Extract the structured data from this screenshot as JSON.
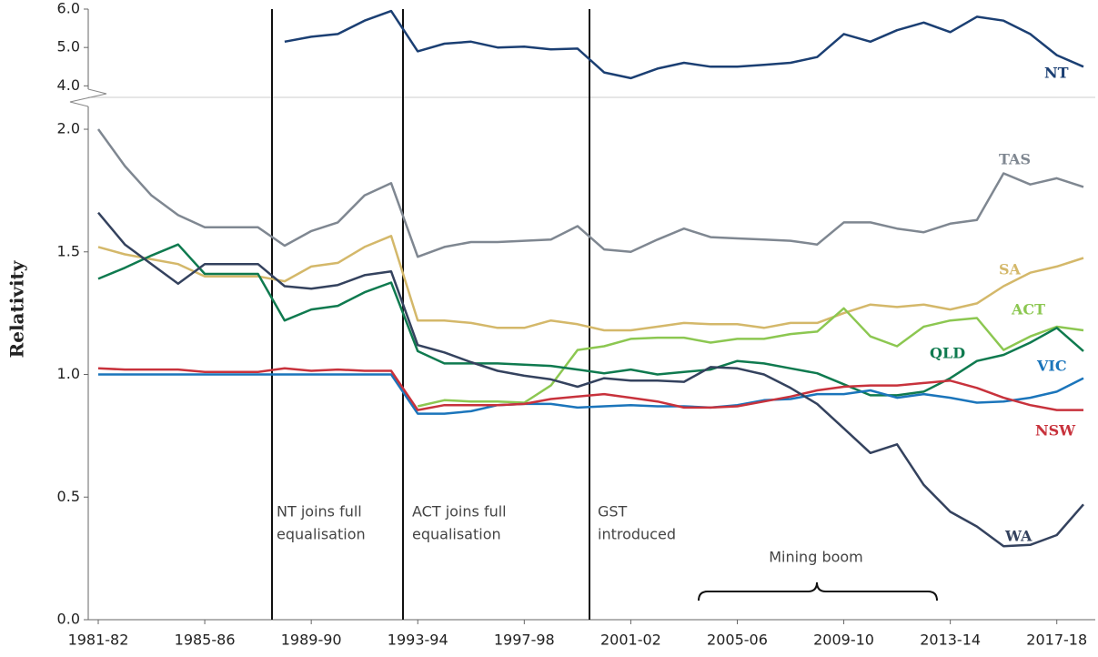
{
  "chart_data": {
    "type": "line",
    "y_label": "Relativity",
    "categories": [
      "1981-82",
      null,
      null,
      null,
      "1985-86",
      null,
      null,
      null,
      "1989-90",
      null,
      null,
      null,
      "1993-94",
      null,
      null,
      null,
      "1997-98",
      null,
      null,
      null,
      "2001-02",
      null,
      null,
      null,
      "2005-06",
      null,
      null,
      null,
      "2009-10",
      null,
      null,
      null,
      "2013-14",
      null,
      null,
      null,
      "2017-18",
      null
    ],
    "ylim": [
      0,
      2.13
    ],
    "yticks": [
      {
        "value": 0,
        "label": "0.0"
      },
      0.5,
      {
        "value": 1,
        "label": "1.0"
      },
      1.5,
      {
        "value": 2,
        "label": "2.0"
      }
    ],
    "y2lim": [
      3.7,
      6
    ],
    "y2ticks": [
      {
        "value": 4,
        "label": "4.0"
      },
      {
        "value": 5,
        "label": "5.0"
      },
      {
        "value": 6,
        "label": "6.0"
      }
    ],
    "series": [
      {
        "name": "NT",
        "color": "#1b3f73",
        "axis": "y2",
        "values": [
          null,
          null,
          null,
          null,
          null,
          null,
          null,
          5.15,
          5.28,
          5.35,
          5.7,
          5.95,
          4.9,
          5.1,
          5.15,
          5.0,
          5.02,
          4.95,
          4.97,
          4.35,
          4.2,
          4.45,
          4.6,
          4.5,
          4.5,
          4.55,
          4.6,
          4.75,
          5.35,
          5.15,
          5.45,
          5.65,
          5.4,
          5.8,
          5.7,
          5.35,
          4.8,
          4.5
        ]
      },
      {
        "name": "TAS",
        "color": "#7f8791",
        "values": [
          2.0,
          1.85,
          1.73,
          1.65,
          1.6,
          1.6,
          1.6,
          1.525,
          1.585,
          1.62,
          1.73,
          1.78,
          1.48,
          1.52,
          1.54,
          1.54,
          1.545,
          1.55,
          1.605,
          1.51,
          1.5,
          1.55,
          1.595,
          1.56,
          1.555,
          1.55,
          1.545,
          1.53,
          1.62,
          1.62,
          1.595,
          1.58,
          1.615,
          1.63,
          1.82,
          1.775,
          1.8,
          1.765
        ]
      },
      {
        "name": "SA",
        "color": "#d4b86a",
        "values": [
          1.52,
          1.49,
          1.47,
          1.45,
          1.4,
          1.4,
          1.4,
          1.38,
          1.44,
          1.455,
          1.52,
          1.565,
          1.22,
          1.22,
          1.21,
          1.19,
          1.19,
          1.22,
          1.205,
          1.18,
          1.18,
          1.195,
          1.21,
          1.205,
          1.205,
          1.19,
          1.21,
          1.21,
          1.25,
          1.285,
          1.275,
          1.285,
          1.265,
          1.29,
          1.36,
          1.415,
          1.44,
          1.475
        ]
      },
      {
        "name": "ACT",
        "color": "#8cc751",
        "values": [
          null,
          null,
          null,
          null,
          null,
          null,
          null,
          null,
          null,
          null,
          null,
          null,
          0.87,
          0.895,
          0.89,
          0.89,
          0.885,
          0.955,
          1.1,
          1.115,
          1.145,
          1.15,
          1.15,
          1.13,
          1.145,
          1.145,
          1.165,
          1.175,
          1.27,
          1.155,
          1.115,
          1.195,
          1.22,
          1.23,
          1.1,
          1.155,
          1.195,
          1.18
        ]
      },
      {
        "name": "QLD",
        "color": "#0f7a4f",
        "values": [
          1.39,
          1.435,
          1.485,
          1.53,
          1.41,
          1.41,
          1.41,
          1.22,
          1.265,
          1.28,
          1.335,
          1.375,
          1.095,
          1.045,
          1.045,
          1.045,
          1.04,
          1.035,
          1.02,
          1.005,
          1.02,
          1.0,
          1.01,
          1.02,
          1.055,
          1.045,
          1.025,
          1.005,
          0.96,
          0.915,
          0.915,
          0.93,
          0.985,
          1.055,
          1.08,
          1.13,
          1.19,
          1.095
        ]
      },
      {
        "name": "VIC",
        "color": "#1b75bb",
        "values": [
          1.0,
          1.0,
          1.0,
          1.0,
          1.0,
          1.0,
          1.0,
          1.0,
          1.0,
          1.0,
          1.0,
          1.0,
          0.84,
          0.84,
          0.85,
          0.875,
          0.88,
          0.88,
          0.865,
          0.87,
          0.875,
          0.87,
          0.87,
          0.865,
          0.875,
          0.895,
          0.9,
          0.92,
          0.92,
          0.935,
          0.905,
          0.92,
          0.905,
          0.885,
          0.89,
          0.905,
          0.93,
          0.985
        ]
      },
      {
        "name": "NSW",
        "color": "#c8323c",
        "values": [
          1.025,
          1.02,
          1.02,
          1.02,
          1.01,
          1.01,
          1.01,
          1.025,
          1.015,
          1.02,
          1.015,
          1.015,
          0.855,
          0.875,
          0.875,
          0.875,
          0.88,
          0.9,
          0.91,
          0.92,
          0.905,
          0.89,
          0.865,
          0.865,
          0.87,
          0.89,
          0.91,
          0.935,
          0.95,
          0.955,
          0.955,
          0.965,
          0.975,
          0.945,
          0.905,
          0.875,
          0.855,
          0.855
        ]
      },
      {
        "name": "WA",
        "color": "#34425e",
        "values": [
          1.66,
          1.53,
          1.45,
          1.37,
          1.45,
          1.45,
          1.45,
          1.36,
          1.35,
          1.365,
          1.405,
          1.42,
          1.12,
          1.09,
          1.05,
          1.015,
          0.995,
          0.98,
          0.95,
          0.985,
          0.975,
          0.975,
          0.97,
          1.03,
          1.025,
          1.0,
          0.945,
          0.88,
          0.78,
          0.68,
          0.715,
          0.55,
          0.44,
          0.38,
          0.3,
          0.305,
          0.345,
          0.47
        ]
      }
    ],
    "annotations": [
      {
        "lines": [
          "NT joins full",
          "equalisation"
        ]
      },
      {
        "lines": [
          "ACT joins full",
          "equalisation"
        ]
      },
      {
        "lines": [
          "GST",
          "introduced"
        ]
      }
    ],
    "mining_boom": "Mining boom"
  }
}
